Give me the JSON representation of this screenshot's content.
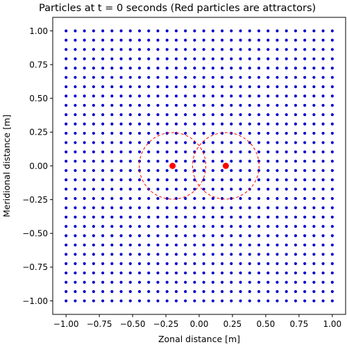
{
  "chart_data": {
    "type": "scatter",
    "title": "Particles at t = 0 seconds (Red particles are attractors)",
    "xlabel": "Zonal distance [m]",
    "ylabel": "Meridional distance [m]",
    "xlim": [
      -1.1,
      1.1
    ],
    "ylim": [
      -1.1,
      1.1
    ],
    "xticks": [
      -1.0,
      -0.75,
      -0.5,
      -0.25,
      0.0,
      0.25,
      0.5,
      0.75,
      1.0
    ],
    "yticks": [
      -1.0,
      -0.75,
      -0.5,
      -0.25,
      0.0,
      0.25,
      0.5,
      0.75,
      1.0
    ],
    "xtick_labels": [
      "−1.00",
      "−0.75",
      "−0.50",
      "−0.25",
      "0.00",
      "0.25",
      "0.50",
      "0.75",
      "1.00"
    ],
    "ytick_labels": [
      "−1.00",
      "−0.75",
      "−0.50",
      "−0.25",
      "0.00",
      "0.25",
      "0.50",
      "0.75",
      "1.00"
    ],
    "grid": false,
    "particles": {
      "x_range": [
        -1.0,
        1.0
      ],
      "y_range": [
        -1.0,
        1.0
      ],
      "count_per_axis": 30,
      "color": "#0000cc"
    },
    "attractors": {
      "x": [
        -0.2,
        0.2
      ],
      "y": [
        0.0,
        0.0
      ],
      "radius": 0.25,
      "color": "#ff0000",
      "circle_style": "dashed"
    }
  }
}
